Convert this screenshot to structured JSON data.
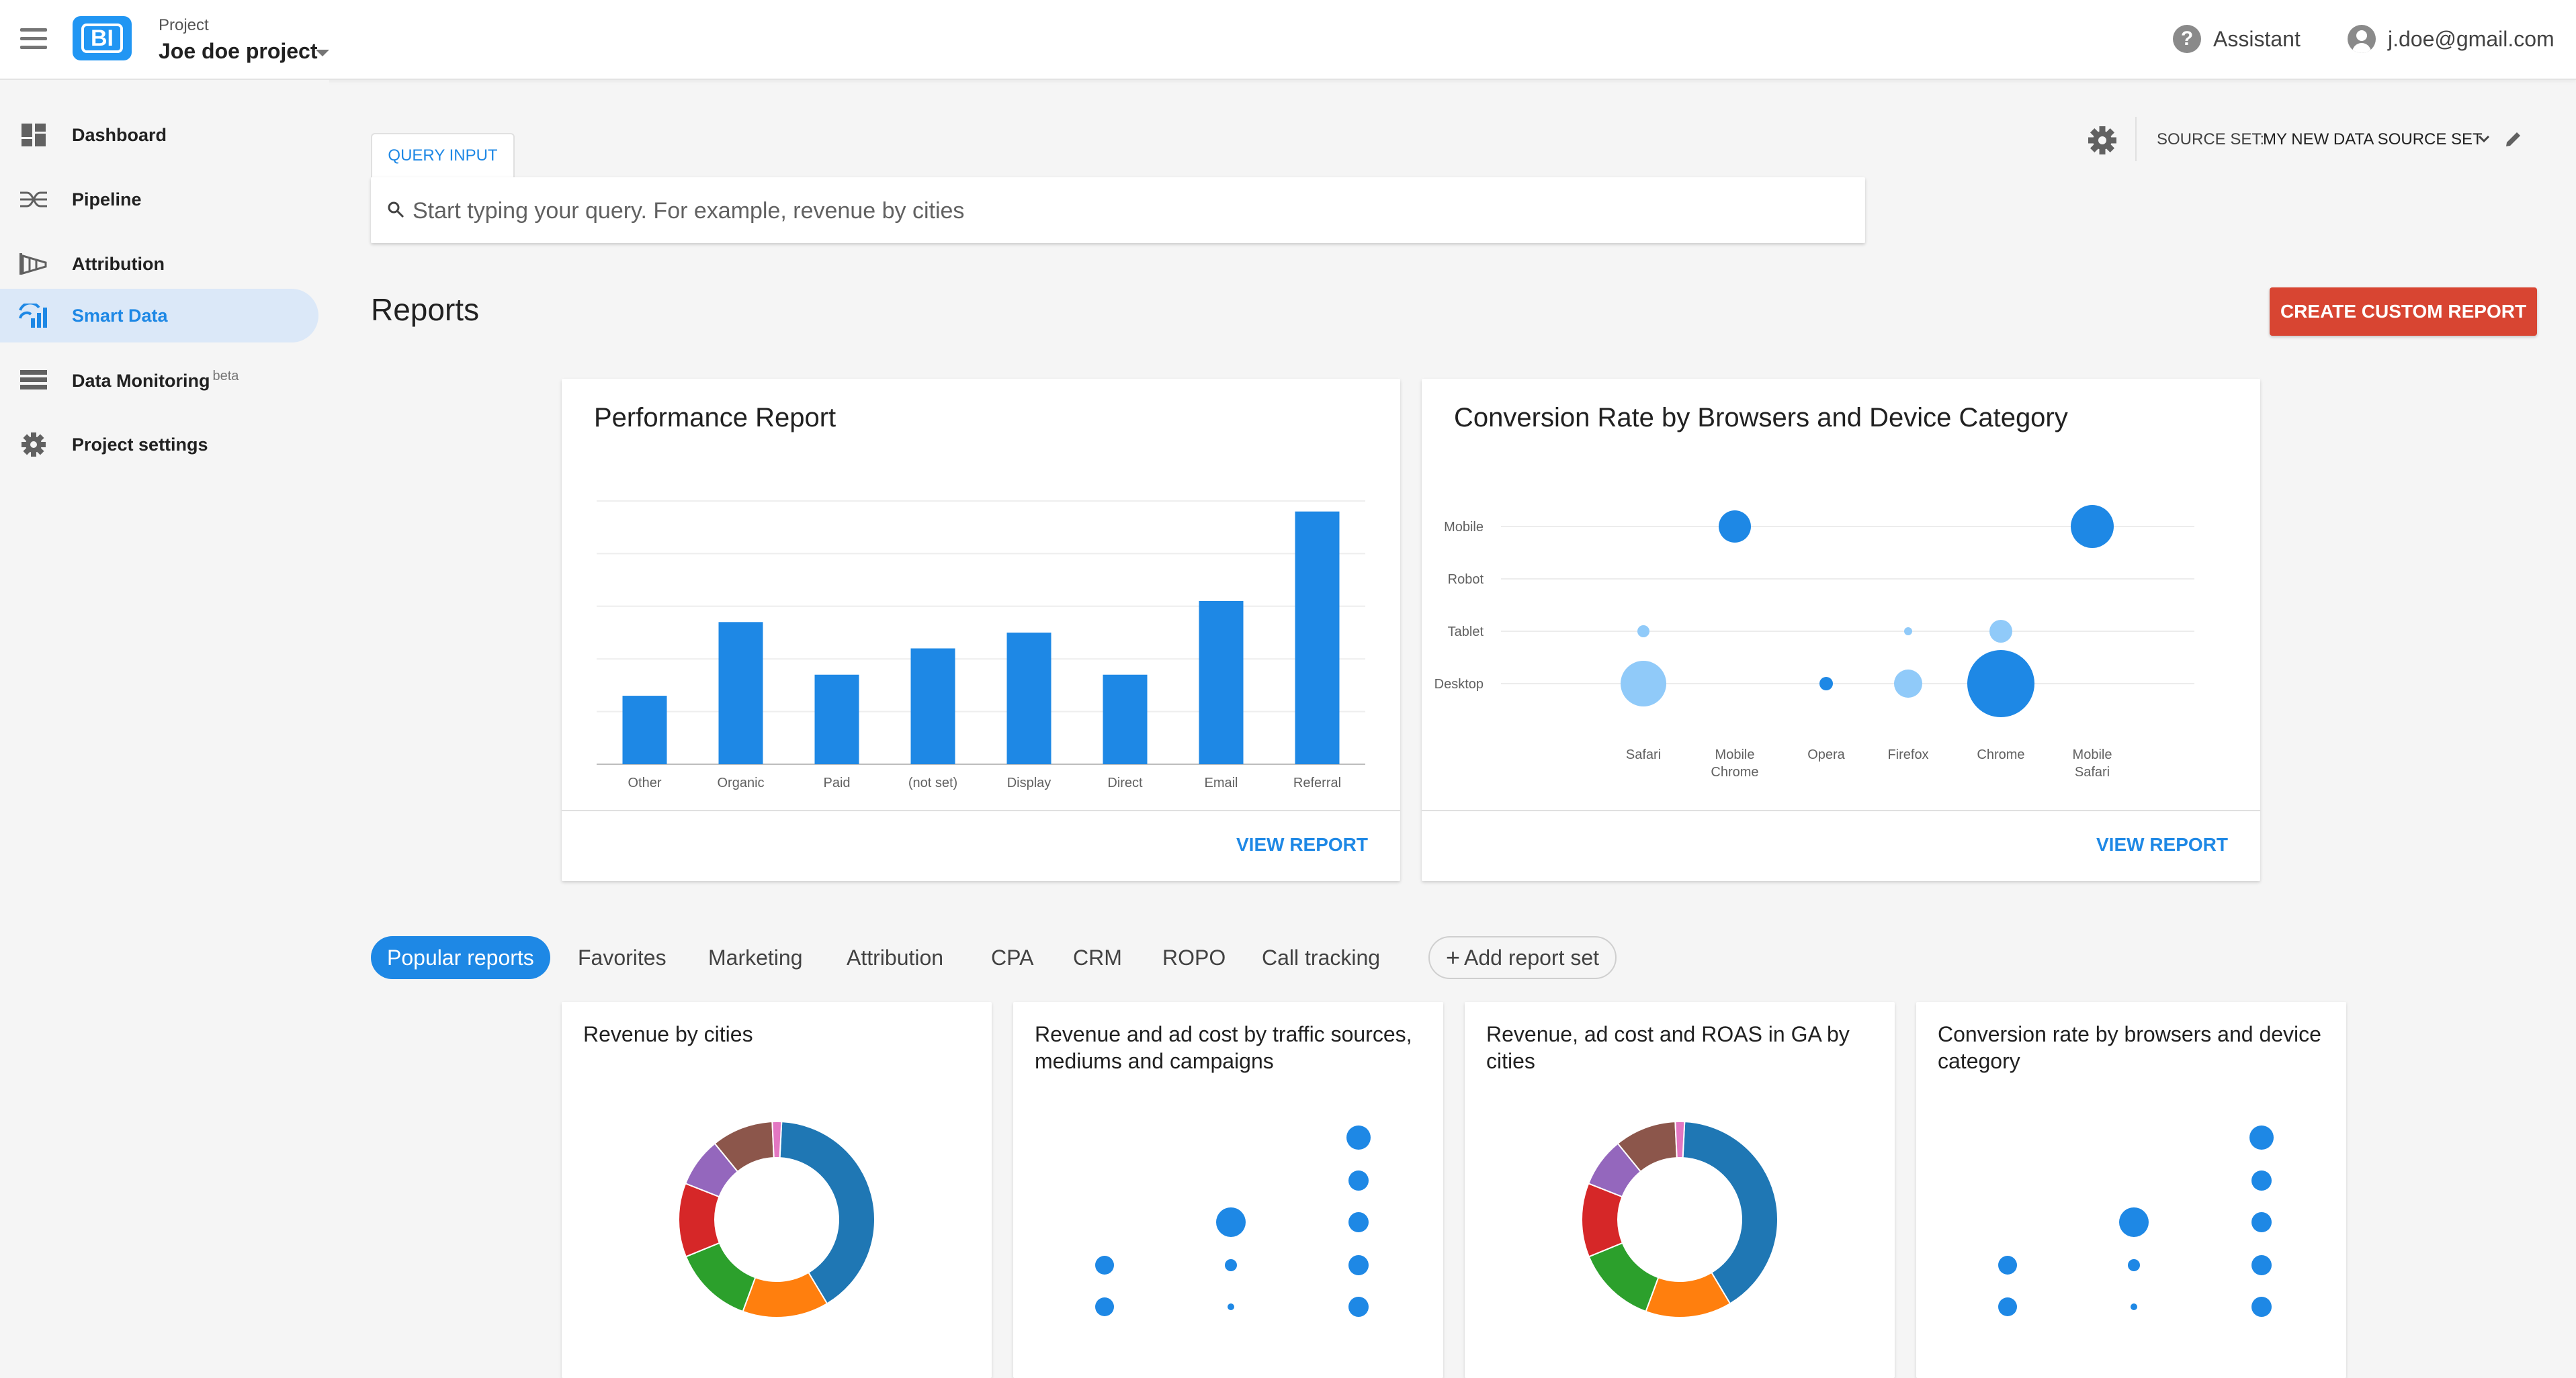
{
  "header": {
    "project_label": "Project",
    "project_name": "Joe doe project",
    "logo_text": "BI",
    "assistant_label": "Assistant",
    "account_email": "j.doe@gmail.com",
    "brand_color": "#2196f3"
  },
  "sidebar": {
    "items": [
      {
        "label": "Dashboard",
        "icon": "dashboard-icon"
      },
      {
        "label": "Pipeline",
        "icon": "pipeline-icon"
      },
      {
        "label": "Attribution",
        "icon": "attribution-icon"
      },
      {
        "label": "Smart Data",
        "icon": "smart-data-icon",
        "active": true
      },
      {
        "label": "Data Monitoring",
        "icon": "data-monitoring-icon",
        "badge": "beta"
      },
      {
        "label": "Project settings",
        "icon": "gear-icon"
      }
    ]
  },
  "query": {
    "tab_label": "QUERY INPUT",
    "placeholder": "Start typing your query. For example, revenue by cities"
  },
  "source_set": {
    "label": "SOURCE SET:",
    "value": "MY NEW DATA SOURCE SET"
  },
  "reports": {
    "title": "Reports",
    "create_button": "CREATE CUSTOM REPORT",
    "accent_color": "#d84532"
  },
  "performance_card": {
    "title": "Performance Report",
    "link": "VIEW REPORT"
  },
  "conversion_card": {
    "title": "Conversion Rate by Browsers and Device Category",
    "link": "VIEW REPORT"
  },
  "report_tabs": {
    "items": [
      "Popular reports",
      "Favorites",
      "Marketing",
      "Attribution",
      "CPA",
      "CRM",
      "ROPO",
      "Call tracking"
    ],
    "add_label": "Add report set"
  },
  "popular_cards": [
    {
      "title": "Revenue by cities"
    },
    {
      "title": "Revenue and ad cost by traffic sources, mediums and campaigns"
    },
    {
      "title": "Revenue, ad cost and ROAS in GA by cities"
    },
    {
      "title": "Conversion rate by browsers and device category"
    }
  ],
  "chart_data": [
    {
      "type": "bar",
      "title": "Performance Report",
      "categories": [
        "Other",
        "Organic",
        "Paid",
        "(not set)",
        "Display",
        "Direct",
        "Email",
        "Referral"
      ],
      "values": [
        13,
        27,
        17,
        22,
        25,
        17,
        31,
        48
      ],
      "ylim": [
        0,
        50
      ],
      "grid": true,
      "color": "#1e88e5"
    },
    {
      "type": "scatter",
      "title": "Conversion Rate by Browsers and Device Category",
      "x_categories": [
        "Safari",
        "Mobile Chrome",
        "Opera",
        "Firefox",
        "Chrome",
        "Mobile Safari"
      ],
      "y_categories": [
        "Mobile",
        "Robot",
        "Tablet",
        "Desktop"
      ],
      "points": [
        {
          "x": "Mobile Chrome",
          "y": "Mobile",
          "size": 24,
          "style": "solid"
        },
        {
          "x": "Mobile Safari",
          "y": "Mobile",
          "size": 32,
          "style": "solid"
        },
        {
          "x": "Safari",
          "y": "Tablet",
          "size": 9,
          "style": "light"
        },
        {
          "x": "Firefox",
          "y": "Tablet",
          "size": 6,
          "style": "light"
        },
        {
          "x": "Chrome",
          "y": "Tablet",
          "size": 17,
          "style": "light"
        },
        {
          "x": "Safari",
          "y": "Desktop",
          "size": 34,
          "style": "light"
        },
        {
          "x": "Opera",
          "y": "Desktop",
          "size": 10,
          "style": "solid"
        },
        {
          "x": "Firefox",
          "y": "Desktop",
          "size": 21,
          "style": "light"
        },
        {
          "x": "Chrome",
          "y": "Desktop",
          "size": 50,
          "style": "solid"
        }
      ],
      "grid": true,
      "color": "#1e88e5",
      "light_color": "#90caf9"
    },
    {
      "type": "pie",
      "title": "Revenue by cities",
      "values": [
        40,
        14,
        13,
        12,
        8,
        10,
        1.5
      ],
      "colors": [
        "#1f77b4",
        "#ff7f0e",
        "#2ca02c",
        "#d62728",
        "#9467bd",
        "#8c564b",
        "#e377c2"
      ]
    },
    {
      "type": "scatter",
      "title": "Revenue and ad cost by traffic sources, mediums and campaigns",
      "points": [
        {
          "col": 0,
          "row": 3,
          "size": 14
        },
        {
          "col": 0,
          "row": 4,
          "size": 14
        },
        {
          "col": 1,
          "row": 2,
          "size": 22
        },
        {
          "col": 1,
          "row": 3,
          "size": 9
        },
        {
          "col": 1,
          "row": 4,
          "size": 5
        },
        {
          "col": 2,
          "row": 0,
          "size": 18
        },
        {
          "col": 2,
          "row": 1,
          "size": 15
        },
        {
          "col": 2,
          "row": 2,
          "size": 15
        },
        {
          "col": 2,
          "row": 3,
          "size": 15
        },
        {
          "col": 2,
          "row": 4,
          "size": 15
        }
      ],
      "color": "#1e88e5"
    },
    {
      "type": "pie",
      "title": "Revenue, ad cost and ROAS in GA by cities",
      "values": [
        40,
        14,
        13,
        12,
        8,
        10,
        1.5
      ],
      "colors": [
        "#1f77b4",
        "#ff7f0e",
        "#2ca02c",
        "#d62728",
        "#9467bd",
        "#8c564b",
        "#e377c2"
      ]
    },
    {
      "type": "scatter",
      "title": "Conversion rate by browsers and device category",
      "points": [
        {
          "col": 0,
          "row": 3,
          "size": 14
        },
        {
          "col": 0,
          "row": 4,
          "size": 14
        },
        {
          "col": 1,
          "row": 2,
          "size": 22
        },
        {
          "col": 1,
          "row": 3,
          "size": 9
        },
        {
          "col": 1,
          "row": 4,
          "size": 5
        },
        {
          "col": 2,
          "row": 0,
          "size": 18
        },
        {
          "col": 2,
          "row": 1,
          "size": 15
        },
        {
          "col": 2,
          "row": 2,
          "size": 15
        },
        {
          "col": 2,
          "row": 3,
          "size": 15
        },
        {
          "col": 2,
          "row": 4,
          "size": 15
        }
      ],
      "color": "#1e88e5"
    }
  ]
}
